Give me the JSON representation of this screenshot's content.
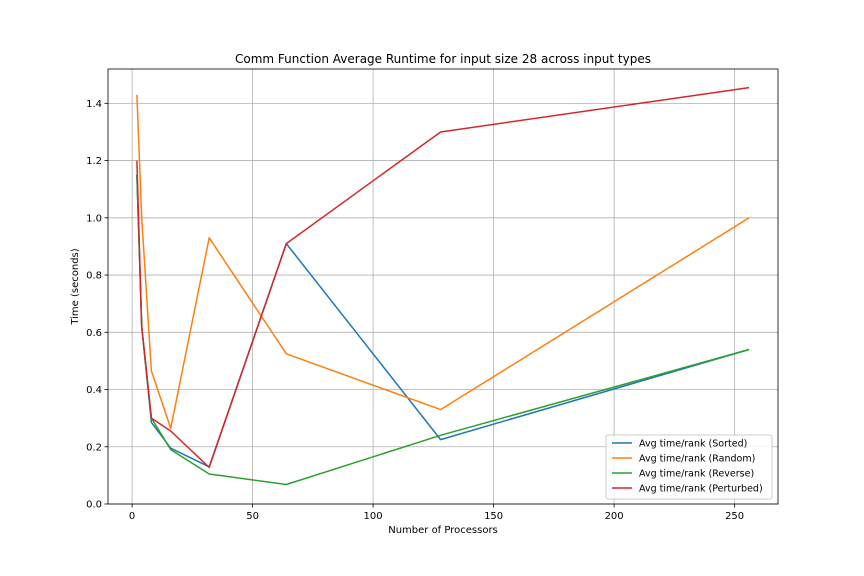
{
  "chart_data": {
    "type": "line",
    "title": "Comm Function Average Runtime for input size 28 across input types",
    "xlabel": "Number of Processors",
    "ylabel": "Time (seconds)",
    "xlim": [
      -10,
      268
    ],
    "ylim": [
      0,
      1.52
    ],
    "xticks": [
      0,
      50,
      100,
      150,
      200,
      250
    ],
    "yticks": [
      0.0,
      0.2,
      0.4,
      0.6,
      0.8,
      1.0,
      1.2,
      1.4
    ],
    "xtick_labels": [
      "0",
      "50",
      "100",
      "150",
      "200",
      "250"
    ],
    "ytick_labels": [
      "0.0",
      "0.2",
      "0.4",
      "0.6",
      "0.8",
      "1.0",
      "1.2",
      "1.4"
    ],
    "grid": true,
    "legend_position": "lower-right",
    "x": [
      2,
      4,
      8,
      16,
      32,
      64,
      128,
      256
    ],
    "series": [
      {
        "name": "Avg time/rank (Sorted)",
        "color": "#1f77b4",
        "values": [
          1.15,
          0.62,
          0.285,
          0.195,
          0.13,
          0.91,
          0.225,
          0.54
        ]
      },
      {
        "name": "Avg time/rank (Random)",
        "color": "#ff7f0e",
        "values": [
          1.43,
          1.0,
          0.465,
          0.265,
          0.93,
          0.525,
          0.33,
          1.0
        ]
      },
      {
        "name": "Avg time/rank (Reverse)",
        "color": "#2ca02c",
        "values": [
          1.15,
          0.62,
          0.3,
          0.19,
          0.105,
          0.068,
          0.24,
          0.54
        ]
      },
      {
        "name": "Avg time/rank (Perturbed)",
        "color": "#d62728",
        "values": [
          1.2,
          0.62,
          0.3,
          0.255,
          0.128,
          0.91,
          1.3,
          1.455
        ]
      }
    ]
  }
}
